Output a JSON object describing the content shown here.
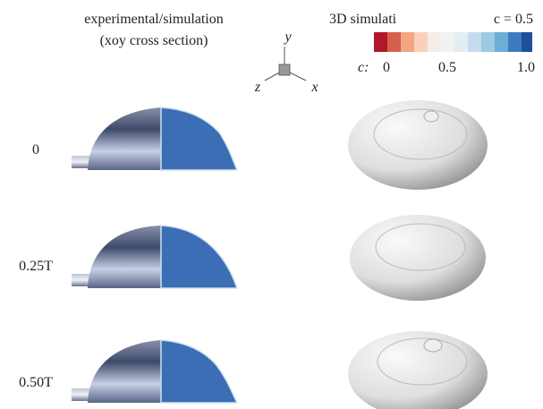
{
  "header": {
    "left_title": "experimental/simulation",
    "left_subtitle": "(xoy cross section)",
    "right_title": "3D simulati",
    "right_note": "c = 0.5"
  },
  "axes_triad": {
    "y": "y",
    "z": "z",
    "x": "x"
  },
  "colorbar": {
    "label": "c:",
    "ticks": [
      "0",
      "0.5",
      "1.0"
    ]
  },
  "rows": [
    {
      "label": "0"
    },
    {
      "label": "0.25T"
    },
    {
      "label": "0.50T"
    }
  ]
}
